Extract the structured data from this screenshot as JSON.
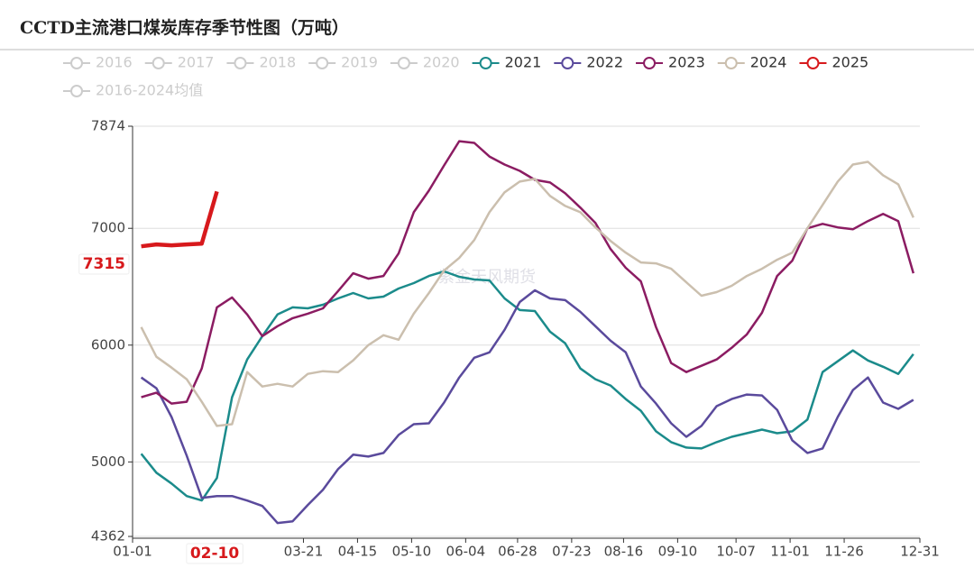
{
  "chart_data": {
    "type": "line",
    "title": "CCTD主流港口煤炭库存季节性图（万吨）",
    "watermark": "紫金天风期货",
    "x": [
      4,
      11,
      18,
      25,
      32,
      39,
      46,
      53,
      60,
      67,
      74,
      81,
      88,
      95,
      102,
      109,
      116,
      123,
      130,
      137,
      144,
      151,
      158,
      165,
      172,
      179,
      186,
      193,
      200,
      207,
      214,
      221,
      228,
      235,
      242,
      249,
      256,
      263,
      270,
      277,
      284,
      291,
      298,
      305,
      312,
      319,
      326,
      333,
      340,
      347,
      354,
      361
    ],
    "xlim": [
      0,
      364
    ],
    "xticks": [
      {
        "value": 0,
        "label": "01-01"
      },
      {
        "value": 79,
        "label": "03-21"
      },
      {
        "value": 104,
        "label": "04-15"
      },
      {
        "value": 129,
        "label": "05-10"
      },
      {
        "value": 154,
        "label": "06-04"
      },
      {
        "value": 178,
        "label": "06-28"
      },
      {
        "value": 203,
        "label": "07-23"
      },
      {
        "value": 227,
        "label": "08-16"
      },
      {
        "value": 252,
        "label": "09-10"
      },
      {
        "value": 279,
        "label": "10-07"
      },
      {
        "value": 304,
        "label": "11-01"
      },
      {
        "value": 329,
        "label": "11-26"
      },
      {
        "value": 364,
        "label": "12-31"
      }
    ],
    "ylim": [
      4362,
      7874
    ],
    "yticks": [
      4362,
      5000,
      6000,
      7000,
      7874
    ],
    "grid": true,
    "legend": {
      "inactive": [
        "2016",
        "2017",
        "2018",
        "2019",
        "2020"
      ],
      "inactive_after": [
        "2016-2024均值"
      ],
      "inactive_color": "#cccccc"
    },
    "pointer": {
      "x_label": "02-10",
      "y_label": "7315",
      "color": "#d7191c"
    },
    "series": [
      {
        "name": "2021",
        "color": "#1b8b8b",
        "values": [
          5070,
          4908,
          4815,
          4708,
          4670,
          4862,
          5554,
          5877,
          6077,
          6262,
          6323,
          6315,
          6346,
          6400,
          6446,
          6400,
          6415,
          6485,
          6531,
          6592,
          6631,
          6585,
          6562,
          6554,
          6400,
          6300,
          6292,
          6115,
          6015,
          5800,
          5708,
          5654,
          5538,
          5438,
          5262,
          5169,
          5123,
          5115,
          5169,
          5215,
          5246,
          5277,
          5246,
          5262,
          5362,
          5769,
          5862,
          5954,
          5869,
          5815,
          5754,
          5923
        ]
      },
      {
        "name": "2022",
        "color": "#5a4a9c",
        "values": [
          5723,
          5631,
          5385,
          5054,
          4692,
          4708,
          4708,
          4669,
          4623,
          4477,
          4492,
          4631,
          4762,
          4938,
          5062,
          5046,
          5077,
          5231,
          5323,
          5331,
          5508,
          5723,
          5892,
          5938,
          6131,
          6369,
          6469,
          6400,
          6385,
          6285,
          6162,
          6038,
          5938,
          5646,
          5500,
          5331,
          5215,
          5308,
          5477,
          5538,
          5577,
          5569,
          5446,
          5185,
          5077,
          5115,
          5385,
          5615,
          5723,
          5508,
          5454,
          5531
        ]
      },
      {
        "name": "2023",
        "color": "#8b1c62",
        "values": [
          5554,
          5592,
          5500,
          5515,
          5800,
          6323,
          6408,
          6262,
          6077,
          6162,
          6231,
          6269,
          6315,
          6462,
          6615,
          6569,
          6592,
          6785,
          7138,
          7323,
          7538,
          7746,
          7731,
          7615,
          7546,
          7492,
          7415,
          7392,
          7300,
          7177,
          7046,
          6823,
          6662,
          6546,
          6154,
          5846,
          5769,
          5823,
          5877,
          5977,
          6092,
          6277,
          6592,
          6723,
          7000,
          7038,
          7008,
          6992,
          7062,
          7123,
          7062,
          6615
        ]
      },
      {
        "name": "2024",
        "color": "#cbbfae",
        "values": [
          6154,
          5900,
          5808,
          5708,
          5515,
          5308,
          5323,
          5769,
          5646,
          5669,
          5646,
          5754,
          5777,
          5769,
          5869,
          6000,
          6085,
          6046,
          6269,
          6446,
          6638,
          6746,
          6900,
          7138,
          7308,
          7400,
          7423,
          7277,
          7192,
          7138,
          7008,
          6892,
          6792,
          6708,
          6700,
          6654,
          6538,
          6423,
          6454,
          6508,
          6592,
          6654,
          6731,
          6792,
          7000,
          7200,
          7400,
          7546,
          7569,
          7454,
          7377,
          7092
        ]
      },
      {
        "name": "2025",
        "color": "#d7191c",
        "values": [
          6846,
          6862,
          6854,
          6862,
          6869,
          7315,
          null,
          null,
          null,
          null,
          null,
          null,
          null,
          null,
          null,
          null,
          null,
          null,
          null,
          null,
          null,
          null,
          null,
          null,
          null,
          null,
          null,
          null,
          null,
          null,
          null,
          null,
          null,
          null,
          null,
          null,
          null,
          null,
          null,
          null,
          null,
          null,
          null,
          null,
          null,
          null,
          null,
          null,
          null,
          null,
          null,
          null
        ]
      }
    ]
  }
}
